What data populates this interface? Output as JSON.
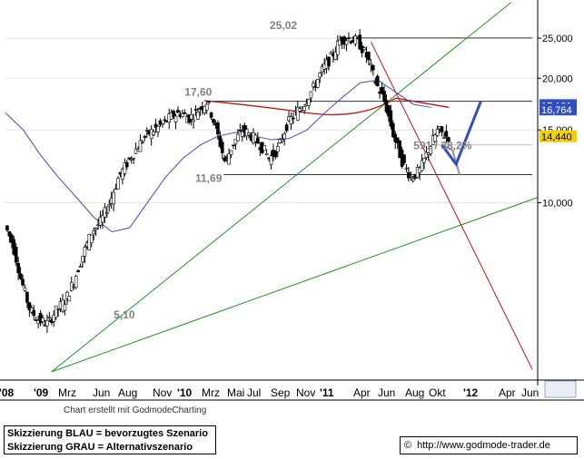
{
  "chart_data": {
    "type": "candlestick",
    "y_scale": "log",
    "ylim": [
      3.8,
      30
    ],
    "y_ticks": [
      "25,000",
      "20,000",
      "15,000",
      "10,000"
    ],
    "x_labels": [
      "'08",
      "'09",
      "Mrz",
      "Jun",
      "Aug",
      "Nov",
      "'10",
      "Mrz",
      "Mai",
      "Jul",
      "Sep",
      "Nov",
      "'11",
      "Apr",
      "Jun",
      "Aug",
      "Okt",
      "'12",
      "Apr",
      "Jun"
    ],
    "price_path": [
      [
        0,
        9.0
      ],
      [
        0.5,
        8.0
      ],
      [
        1,
        6.5
      ],
      [
        1.5,
        5.5
      ],
      [
        2,
        5.2
      ],
      [
        2.5,
        5.1
      ],
      [
        3,
        5.5
      ],
      [
        3.5,
        5.8
      ],
      [
        4,
        6.5
      ],
      [
        4.5,
        7.5
      ],
      [
        5,
        8.5
      ],
      [
        5.5,
        9.0
      ],
      [
        6,
        10.0
      ],
      [
        6.5,
        11.5
      ],
      [
        7,
        12.5
      ],
      [
        7.5,
        13.5
      ],
      [
        8,
        14.5
      ],
      [
        8.5,
        15.0
      ],
      [
        9,
        15.5
      ],
      [
        9.5,
        16.2
      ],
      [
        10,
        16.5
      ],
      [
        10.5,
        16.0
      ],
      [
        11,
        16.8
      ],
      [
        11.5,
        17.6
      ],
      [
        12,
        15.0
      ],
      [
        12.5,
        12.5
      ],
      [
        13,
        14.0
      ],
      [
        13.5,
        15.0
      ],
      [
        14,
        14.5
      ],
      [
        14.5,
        13.8
      ],
      [
        15,
        12.8
      ],
      [
        15.5,
        13.5
      ],
      [
        16,
        15.5
      ],
      [
        16.5,
        16.5
      ],
      [
        17,
        17.5
      ],
      [
        17.5,
        19.0
      ],
      [
        18,
        21.0
      ],
      [
        18.5,
        22.5
      ],
      [
        19,
        24.8
      ],
      [
        19.5,
        25.0
      ],
      [
        20,
        24.5
      ],
      [
        20.5,
        22.5
      ],
      [
        21,
        19.5
      ],
      [
        21.5,
        17.5
      ],
      [
        22,
        14.5
      ],
      [
        22.5,
        12.5
      ],
      [
        23,
        11.5
      ],
      [
        23.5,
        12.0
      ],
      [
        24,
        13.5
      ],
      [
        24.5,
        15.0
      ],
      [
        25,
        14.44
      ]
    ],
    "moving_average_blue": [
      [
        0,
        16.5
      ],
      [
        1,
        15.0
      ],
      [
        2,
        13.0
      ],
      [
        3,
        11.5
      ],
      [
        4,
        10.3
      ],
      [
        5,
        9.2
      ],
      [
        6,
        8.5
      ],
      [
        7,
        8.7
      ],
      [
        8,
        10.0
      ],
      [
        9,
        11.5
      ],
      [
        10,
        12.8
      ],
      [
        11,
        13.8
      ],
      [
        12,
        14.5
      ],
      [
        13,
        14.8
      ],
      [
        14,
        14.5
      ],
      [
        15,
        14.2
      ],
      [
        16,
        14.3
      ],
      [
        17,
        15.0
      ],
      [
        18,
        16.5
      ],
      [
        19,
        18.0
      ],
      [
        20,
        19.5
      ],
      [
        21,
        19.8
      ],
      [
        22,
        18.5
      ],
      [
        23,
        17.3
      ],
      [
        24,
        17.0
      ]
    ],
    "annotations": [
      {
        "label": "25,02",
        "value": 25.02
      },
      {
        "label": "17,60",
        "value": 17.6
      },
      {
        "label": "11,69",
        "value": 11.69
      },
      {
        "label": "5,10",
        "value": 5.1
      },
      {
        "label": "591 / 38,2%",
        "value": 13.8
      }
    ],
    "horizontal_levels": [
      25.02,
      17.6,
      13.8,
      11.69
    ],
    "price_tags": [
      {
        "label": "17,181",
        "value": 17.181,
        "color": "#2f4fbf"
      },
      {
        "label": "16,764",
        "value": 16.764,
        "color": "#2f4fbf"
      },
      {
        "label": "14,440",
        "value": 14.44,
        "color": "#f0d000"
      }
    ],
    "scenario_blue": [
      [
        24.6,
        13.8
      ],
      [
        25.4,
        12.4
      ],
      [
        26.8,
        17.6
      ]
    ],
    "scenario_gray": [
      [
        24.6,
        13.8
      ],
      [
        25.2,
        13.4
      ],
      [
        25.6,
        11.69
      ]
    ],
    "colors": {
      "price": "#000000",
      "ma": "#3a4fc4",
      "trend_green": "#1a9a1a",
      "trend_red": "#cc1010",
      "scenario_blue": "#2f4fbf",
      "scenario_gray": "#999999"
    }
  },
  "footer": {
    "credit": "Chart erstellt mit GodmodeCharting",
    "legend_blue": "Skizzierung BLAU = bevorzugtes Szenario",
    "legend_gray": "Skizzierung GRAU = Alternativszenario",
    "copyright_symbol": "©",
    "url": "http://www.godmode-trader.de"
  }
}
